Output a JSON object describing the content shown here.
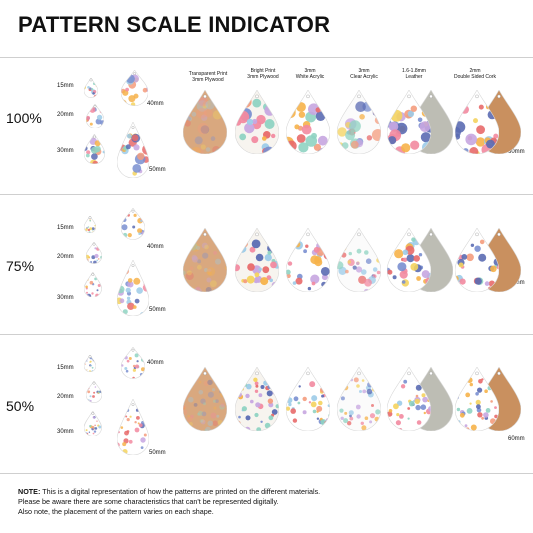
{
  "title": "PATTERN SCALE INDICATOR",
  "sizes": [
    "15mm",
    "20mm",
    "30mm"
  ],
  "sample_lengths": [
    "40mm",
    "50mm"
  ],
  "materials": [
    {
      "line1": "Transparent Print",
      "line2": "3mm Plywood"
    },
    {
      "line1": "Bright Print",
      "line2": "3mm Plywood"
    },
    {
      "line1": "3mm",
      "line2": "White Acrylic"
    },
    {
      "line1": "3mm",
      "line2": "Clear Acrylic"
    },
    {
      "line1": "1.6-1.8mm",
      "line2": "Leather"
    },
    {
      "line1": "2mm",
      "line2": "Double Sided Cork"
    }
  ],
  "right_size": "60mm",
  "scales": [
    "100%",
    "75%",
    "50%"
  ],
  "note": {
    "label": "NOTE:",
    "line1": "This is a digital representation of how the patterns are printed on the different materials.",
    "line2": "Please be aware there are some characteristics that can't be represented digitally.",
    "line3": "Also note, the placement of the pattern varies on each shape."
  },
  "colors": {
    "plywood": "#d9a87f",
    "cork": "#c9905f",
    "leather_back": "#bdbdb4",
    "dot_palette": [
      "#f28aa0",
      "#f6b24a",
      "#7a8fd0",
      "#9ccbe8",
      "#f4d35e",
      "#c7a6e0",
      "#f49c7d",
      "#8fd3c2",
      "#e86a6a",
      "#5b6bb3"
    ]
  }
}
